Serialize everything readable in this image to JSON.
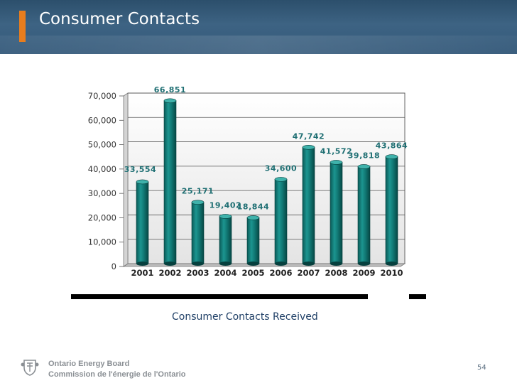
{
  "header": {
    "title": "Consumer Contacts"
  },
  "chart_data": {
    "type": "bar",
    "categories": [
      "2001",
      "2002",
      "2003",
      "2004",
      "2005",
      "2006",
      "2007",
      "2008",
      "2009",
      "2010"
    ],
    "values": [
      33554,
      66851,
      25171,
      19402,
      18844,
      34600,
      47742,
      41572,
      39818,
      43864
    ],
    "value_labels": [
      "33,554",
      "66,851",
      "25,171",
      "19,402",
      "18,844",
      "34,600",
      "47,742",
      "41,572",
      "39,818",
      "43,864"
    ],
    "yticks": [
      "0",
      "10,000",
      "20,000",
      "30,000",
      "40,000",
      "50,000",
      "60,000",
      "70,000"
    ],
    "ylim": [
      0,
      70000
    ],
    "grid": true,
    "colors": {
      "bar": "#0e7470",
      "label": "#1f6f73"
    }
  },
  "caption": "Consumer Contacts Received",
  "footer": {
    "org_en": "Ontario Energy Board",
    "org_fr": "Commission de l'énergie de l'Ontario",
    "page": "54"
  }
}
